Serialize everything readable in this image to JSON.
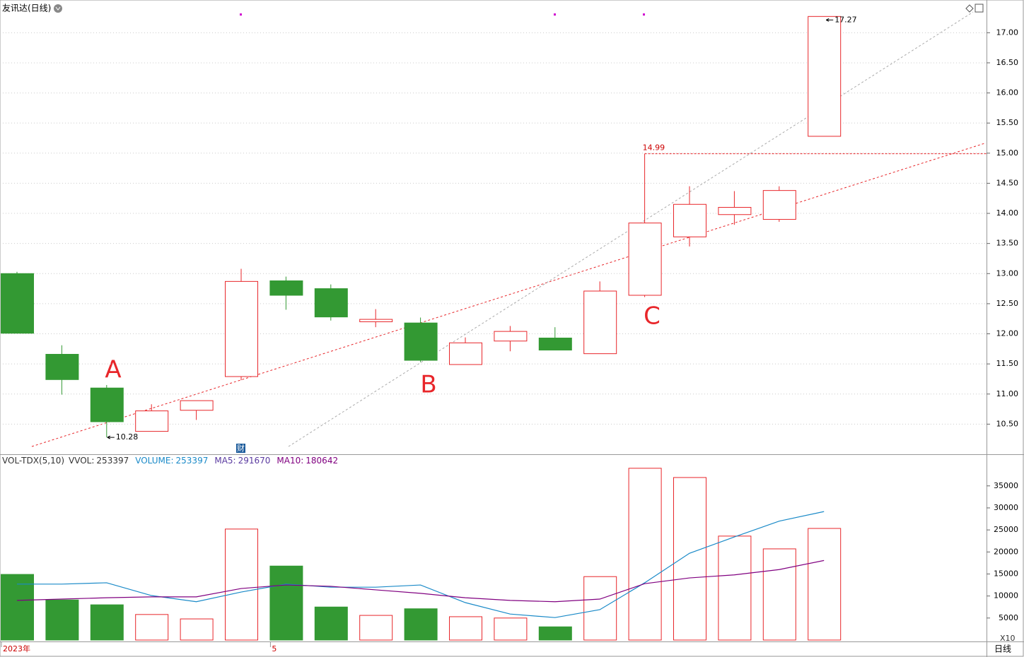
{
  "chart_data": [
    {
      "type": "candlestick",
      "title": "友讯达(日线)",
      "open": [
        13.0,
        11.66,
        11.1,
        10.38,
        10.73,
        11.29,
        12.88,
        12.75,
        12.2,
        12.18,
        11.49,
        11.88,
        11.93,
        11.67,
        12.64,
        13.61,
        13.98,
        13.9,
        15.28
      ],
      "high": [
        13.03,
        11.81,
        11.15,
        10.83,
        10.89,
        13.08,
        12.95,
        12.82,
        12.41,
        12.27,
        11.94,
        12.13,
        12.11,
        12.87,
        14.99,
        14.45,
        14.37,
        14.45,
        17.27
      ],
      "low": [
        12.01,
        10.99,
        10.28,
        10.38,
        10.57,
        11.23,
        12.4,
        12.22,
        12.11,
        11.53,
        11.49,
        11.71,
        11.73,
        11.67,
        12.61,
        13.45,
        13.81,
        13.86,
        15.28
      ],
      "close": [
        12.01,
        11.24,
        10.54,
        10.72,
        10.89,
        12.87,
        12.64,
        12.28,
        12.24,
        11.56,
        11.85,
        12.04,
        11.73,
        12.71,
        13.84,
        14.15,
        14.1,
        14.38,
        17.27
      ],
      "up_color": "#e8262a",
      "down_color": "#339933",
      "ylim": [
        10.0,
        17.52
      ],
      "yticks": [
        {
          "value": 10.5,
          "label": "10.50"
        },
        {
          "value": 11,
          "label": "11.00"
        },
        {
          "value": 11.5,
          "label": "11.50"
        },
        {
          "value": 12,
          "label": "12.00"
        },
        {
          "value": 12.5,
          "label": "12.50"
        },
        {
          "value": 13,
          "label": "13.00"
        },
        {
          "value": 13.5,
          "label": "13.50"
        },
        {
          "value": 14,
          "label": "14.00"
        },
        {
          "value": 14.5,
          "label": "14.50"
        },
        {
          "value": 15,
          "label": "15.00"
        },
        {
          "value": 15.5,
          "label": "15.50"
        },
        {
          "value": 16,
          "label": "16.00"
        },
        {
          "value": 16.5,
          "label": "16.50"
        },
        {
          "value": 17,
          "label": "17.00"
        }
      ],
      "grid": true,
      "annotations": [
        "A",
        "B",
        "C"
      ],
      "event_marker": "财"
    },
    {
      "type": "volume",
      "indicator": "VOL-TDX(5,10)",
      "header": [
        {
          "label": "VVOL:",
          "value": 253397,
          "color": "#333333"
        },
        {
          "label": "VOLUME:",
          "value": 253397,
          "color": "#1a8ac8"
        },
        {
          "label": "MA5:",
          "value": 291670,
          "color": "#5a3aa0"
        },
        {
          "label": "MA10:",
          "value": 180642,
          "color": "#800080"
        }
      ],
      "categories": [
        "2023年",
        null,
        null,
        null,
        null,
        null,
        "5",
        null,
        null,
        null,
        null,
        null,
        null,
        null,
        null,
        null,
        null,
        null,
        null
      ],
      "values": [
        14900,
        9100,
        8000,
        5800,
        4800,
        25200,
        16800,
        7500,
        5600,
        7100,
        5300,
        5000,
        3000,
        14400,
        39000,
        36900,
        23600,
        20700,
        25340
      ],
      "up": [
        false,
        false,
        false,
        true,
        true,
        true,
        false,
        false,
        true,
        false,
        true,
        true,
        false,
        true,
        true,
        true,
        true,
        true,
        true
      ],
      "series": [
        {
          "name": "MA5",
          "color": "#1a8ac8",
          "values": [
            12700,
            12700,
            13000,
            10100,
            8700,
            10900,
            12700,
            12000,
            12000,
            12500,
            8500,
            5900,
            5100,
            6900,
            13000,
            19700,
            23400,
            27000,
            29167
          ]
        },
        {
          "name": "MA10",
          "color": "#800080",
          "values": [
            9000,
            9300,
            9600,
            9800,
            9800,
            11700,
            12500,
            12200,
            11400,
            10600,
            9600,
            9000,
            8700,
            9300,
            12800,
            14100,
            14800,
            16000,
            18064
          ]
        }
      ],
      "ylim": [
        0,
        41860
      ],
      "yticks": [
        5000,
        10000,
        15000,
        20000,
        25000,
        30000,
        35000
      ],
      "scale_label": "X10",
      "period_label": "日线"
    }
  ]
}
